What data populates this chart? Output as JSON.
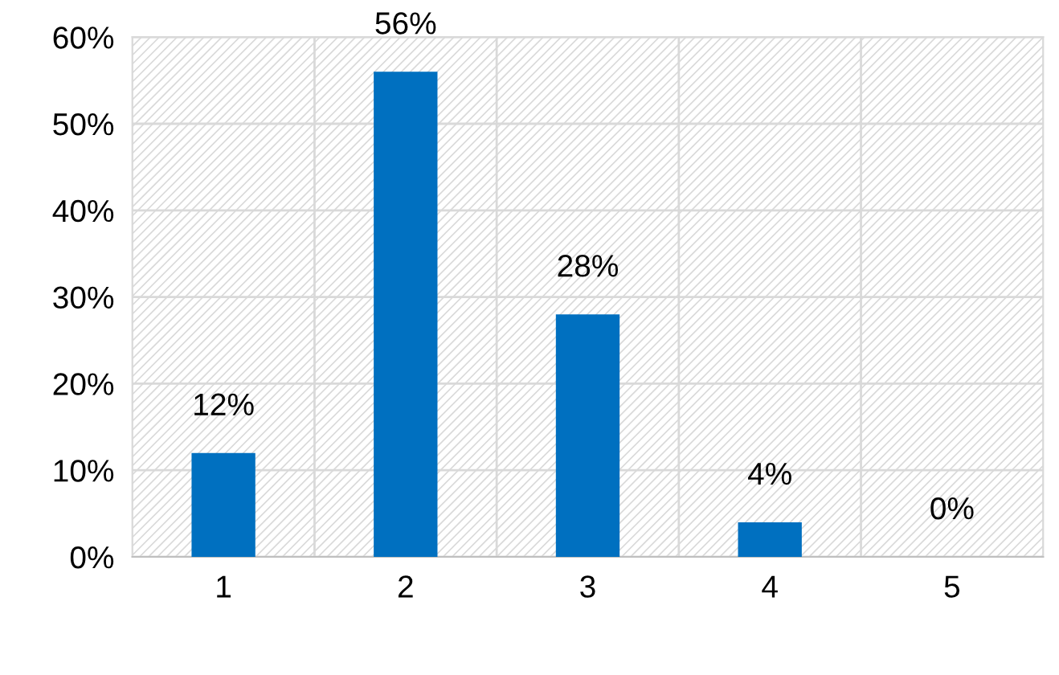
{
  "chart_data": {
    "type": "bar",
    "categories": [
      "1",
      "2",
      "3",
      "4",
      "5"
    ],
    "values": [
      12,
      56,
      28,
      4,
      0
    ],
    "value_labels": [
      "12%",
      "56%",
      "28%",
      "4%",
      "0%"
    ],
    "color": "#0070c0",
    "ylim": [
      0,
      60
    ],
    "yticks": [
      {
        "value": 0,
        "label": "0%"
      },
      {
        "value": 10,
        "label": "10%"
      },
      {
        "value": 20,
        "label": "20%"
      },
      {
        "value": 30,
        "label": "30%"
      },
      {
        "value": 40,
        "label": "40%"
      },
      {
        "value": 50,
        "label": "50%"
      },
      {
        "value": 60,
        "label": "60%"
      }
    ],
    "grid": true
  }
}
